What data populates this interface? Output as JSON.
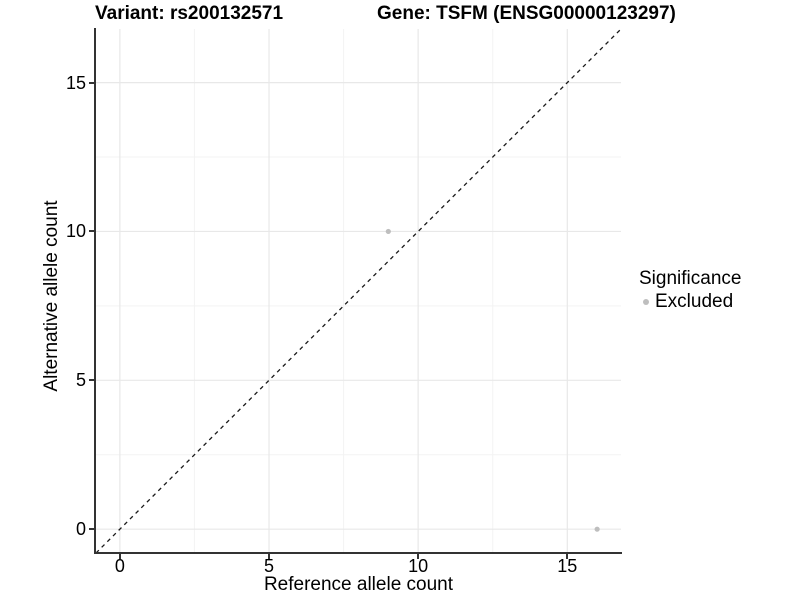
{
  "chart_data": {
    "type": "scatter",
    "title_left": "Variant: rs200132571",
    "title_right": "Gene: TSFM (ENSG00000123297)",
    "xlabel": "Reference allele count",
    "ylabel": "Alternative allele count",
    "xlim": [
      -0.8,
      16.8
    ],
    "ylim": [
      -0.8,
      16.8
    ],
    "x_ticks": [
      0,
      5,
      10,
      15
    ],
    "y_ticks": [
      0,
      5,
      10,
      15
    ],
    "minor_gridlines": [
      2.5,
      7.5,
      12.5
    ],
    "grid": "on",
    "identity_line": {
      "style": "dashed",
      "slope": 1,
      "intercept": 0,
      "color": "#1a1a1a"
    },
    "series": [
      {
        "name": "Excluded",
        "color": "#BEBEBE",
        "points": [
          [
            9,
            10
          ],
          [
            16,
            0
          ]
        ]
      }
    ],
    "legend": {
      "title": "Significance",
      "position": "right",
      "entries": [
        {
          "label": "Excluded",
          "color": "#BEBEBE"
        }
      ]
    },
    "colors": {
      "background": "#FFFFFF",
      "grid_major": "#E8E8E8",
      "grid_minor": "#F3F3F3",
      "axis_line": "#333333",
      "text": "#000000"
    }
  }
}
